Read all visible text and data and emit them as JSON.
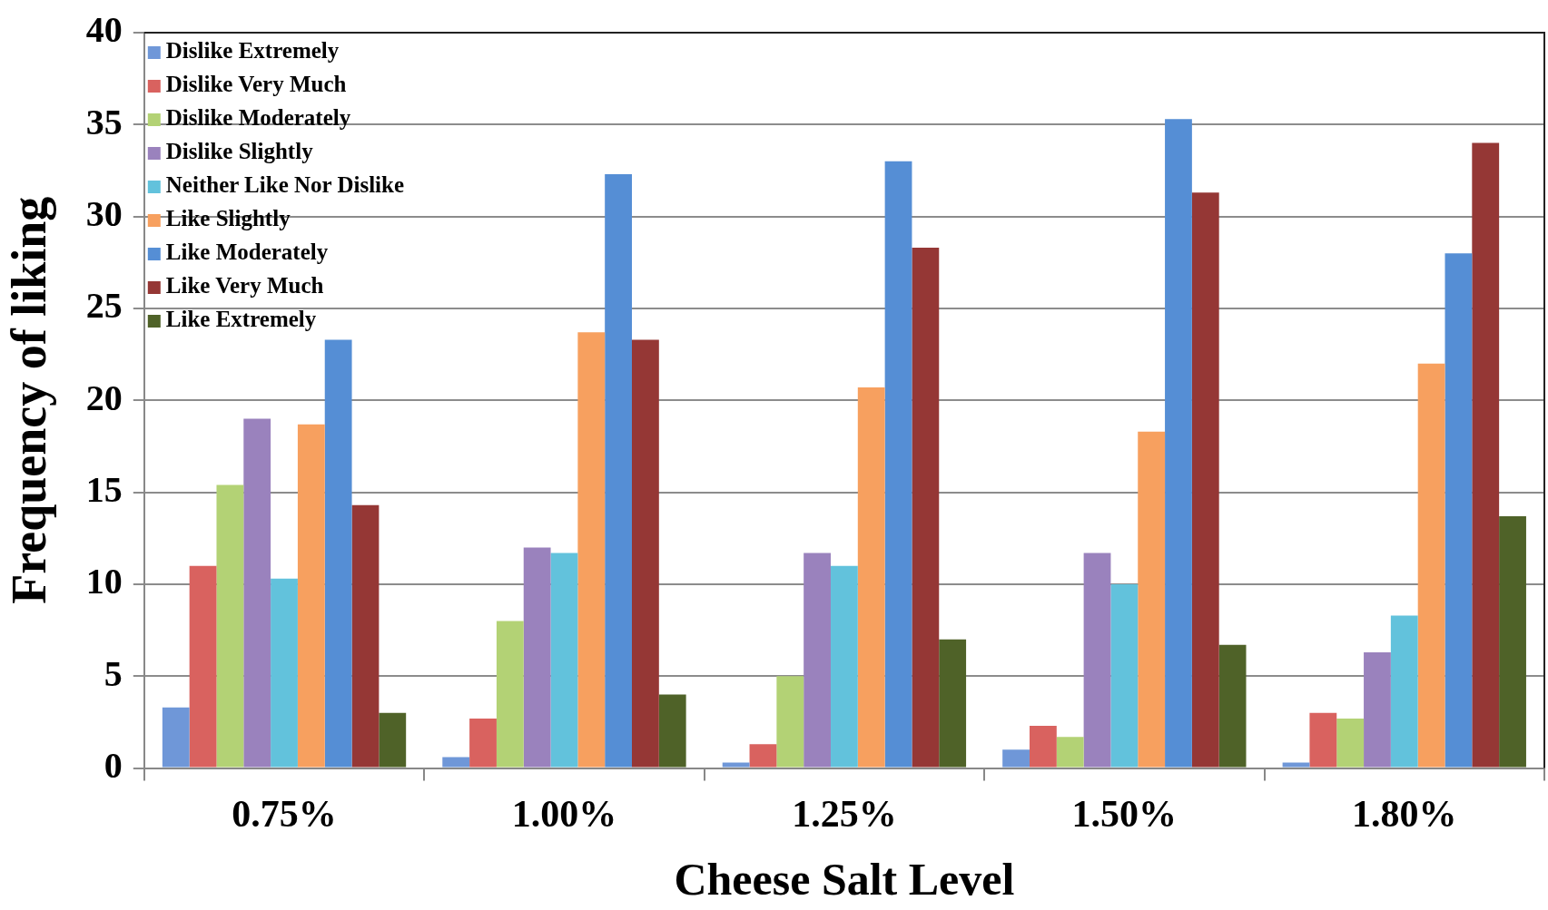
{
  "chart_data": {
    "type": "bar",
    "xlabel": "Cheese Salt Level",
    "ylabel": "Frequency of liking",
    "categories": [
      "0.75%",
      "1.00%",
      "1.25%",
      "1.50%",
      "1.80%"
    ],
    "series": [
      {
        "name": "Dislike Extremely",
        "color": "#6f97d8",
        "values": [
          3.3,
          0.6,
          0.3,
          1.0,
          0.3
        ]
      },
      {
        "name": "Dislike Very Much",
        "color": "#d9625f",
        "values": [
          11.0,
          2.7,
          1.3,
          2.3,
          3.0
        ]
      },
      {
        "name": "Dislike Moderately",
        "color": "#b3d275",
        "values": [
          15.4,
          8.0,
          5.0,
          1.7,
          2.7
        ]
      },
      {
        "name": "Dislike Slightly",
        "color": "#9a82bd",
        "values": [
          19.0,
          12.0,
          11.7,
          11.7,
          6.3
        ]
      },
      {
        "name": "Neither Like Nor Dislike",
        "color": "#62c2dc",
        "values": [
          10.3,
          11.7,
          11.0,
          10.0,
          8.3
        ]
      },
      {
        "name": "Like Slightly",
        "color": "#f7a05f",
        "values": [
          18.7,
          23.7,
          20.7,
          18.3,
          22.0
        ]
      },
      {
        "name": "Like Moderately",
        "color": "#558ed5",
        "values": [
          23.3,
          32.3,
          33.0,
          35.3,
          28.0
        ]
      },
      {
        "name": "Like Very Much",
        "color": "#953735",
        "values": [
          14.3,
          23.3,
          28.3,
          31.3,
          34.0
        ]
      },
      {
        "name": "Like Extremely",
        "color": "#4f6228",
        "values": [
          3.0,
          4.0,
          7.0,
          6.7,
          13.7
        ]
      }
    ],
    "ylim": [
      0,
      40
    ],
    "yticks": [
      0,
      5,
      10,
      15,
      20,
      25,
      30,
      35,
      40
    ],
    "grid": "y",
    "legend": "top left"
  }
}
